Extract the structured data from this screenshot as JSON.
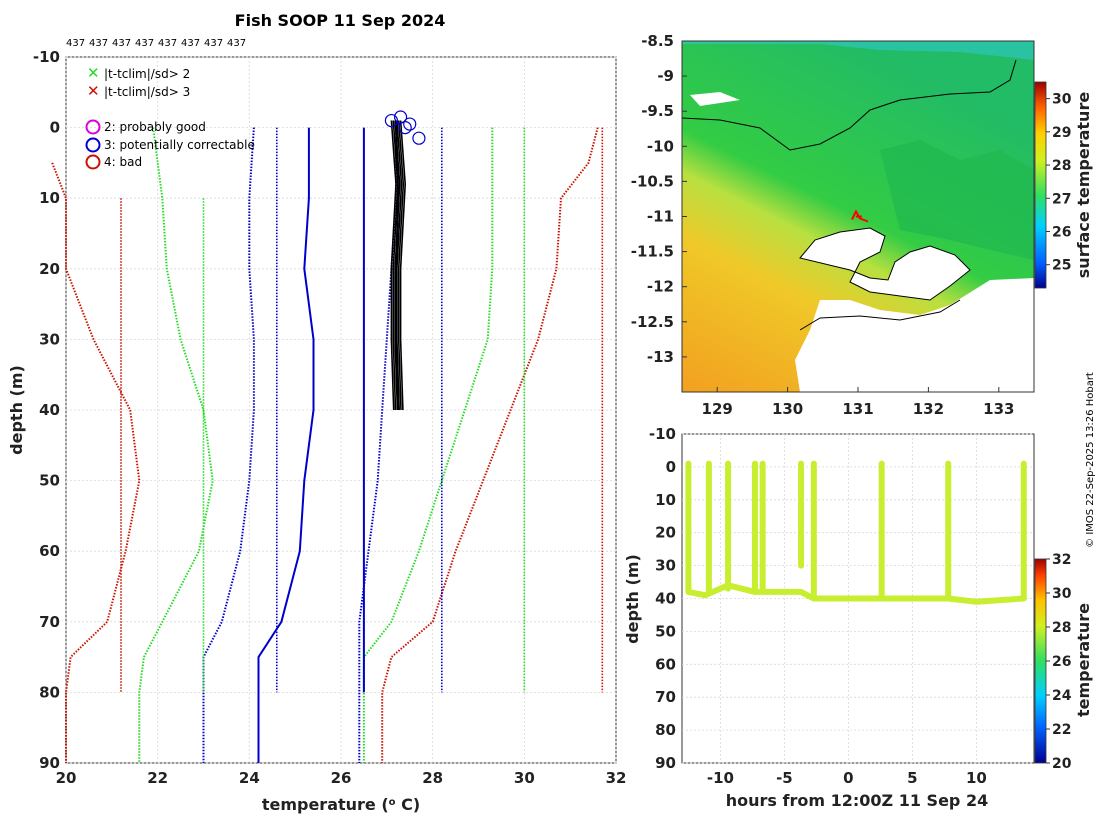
{
  "title": "Fish SOOP 11 Sep 2024",
  "count_labels": [
    "437",
    "437",
    "437",
    "437",
    "437",
    "437",
    "437",
    "437"
  ],
  "copyright": "© IMOS 22-Sep-2025 13:26 Hobart",
  "legend": {
    "flag_sd2": "|t-tclim|/sd> 2",
    "flag_sd3": "|t-tclim|/sd> 3",
    "qc2": "2: probably good",
    "qc3": "3: potentially correctable",
    "qc4": "4: bad"
  },
  "colors": {
    "green": "#22dd22",
    "red": "#cc1100",
    "blue": "#0000cc",
    "magenta": "#dd00dd",
    "black": "#000000"
  },
  "chart_data": [
    {
      "type": "line",
      "title": "Fish SOOP 11 Sep 2024",
      "xlabel": "temperature (o C)",
      "ylabel": "depth (m)",
      "xlim": [
        20,
        32
      ],
      "ylim": [
        -10,
        90
      ],
      "y_reversed": true,
      "xticks": [
        "20",
        "22",
        "24",
        "26",
        "28",
        "30",
        "32"
      ],
      "yticks": [
        "-10",
        "0",
        "10",
        "20",
        "30",
        "40",
        "50",
        "60",
        "70",
        "80",
        "90"
      ],
      "grid": true,
      "legend_position": "top-left",
      "series": [
        {
          "name": "clim mean",
          "color": "blue",
          "style": "solid",
          "width": 2,
          "points": [
            [
              25.3,
              0
            ],
            [
              25.3,
              10
            ],
            [
              25.2,
              20
            ],
            [
              25.4,
              30
            ],
            [
              25.4,
              40
            ],
            [
              25.2,
              50
            ],
            [
              25.1,
              60
            ],
            [
              24.7,
              70
            ],
            [
              24.2,
              75
            ],
            [
              24.2,
              80
            ],
            [
              24.2,
              90
            ]
          ]
        },
        {
          "name": "clim sd1 upper",
          "color": "blue",
          "style": "dotted",
          "width": 2,
          "points": [
            [
              27.2,
              0
            ],
            [
              27.2,
              10
            ],
            [
              27.1,
              20
            ],
            [
              27.0,
              30
            ],
            [
              26.9,
              40
            ],
            [
              26.8,
              50
            ],
            [
              26.6,
              60
            ],
            [
              26.4,
              70
            ],
            [
              26.4,
              80
            ],
            [
              26.4,
              90
            ]
          ]
        },
        {
          "name": "clim sd1 lower",
          "color": "blue",
          "style": "dotted",
          "width": 2,
          "points": [
            [
              24.1,
              0
            ],
            [
              24.0,
              10
            ],
            [
              24.0,
              20
            ],
            [
              24.1,
              30
            ],
            [
              24.1,
              40
            ],
            [
              24.0,
              50
            ],
            [
              23.8,
              60
            ],
            [
              23.4,
              70
            ],
            [
              23.0,
              75
            ],
            [
              23.0,
              80
            ],
            [
              23.0,
              90
            ]
          ]
        },
        {
          "name": "clim sd2 upper",
          "color": "green",
          "style": "dotted",
          "width": 2,
          "points": [
            [
              29.3,
              0
            ],
            [
              29.3,
              10
            ],
            [
              29.3,
              20
            ],
            [
              29.2,
              30
            ],
            [
              28.7,
              40
            ],
            [
              28.2,
              50
            ],
            [
              27.7,
              60
            ],
            [
              27.1,
              70
            ],
            [
              26.5,
              75
            ],
            [
              26.5,
              80
            ],
            [
              26.5,
              90
            ]
          ]
        },
        {
          "name": "clim sd2 lower",
          "color": "green",
          "style": "dotted",
          "width": 2,
          "points": [
            [
              21.9,
              0
            ],
            [
              22.1,
              10
            ],
            [
              22.2,
              20
            ],
            [
              22.5,
              30
            ],
            [
              23.0,
              40
            ],
            [
              23.2,
              50
            ],
            [
              22.9,
              60
            ],
            [
              22.1,
              70
            ],
            [
              21.7,
              75
            ],
            [
              21.6,
              80
            ],
            [
              21.6,
              90
            ]
          ]
        },
        {
          "name": "clim sd3 upper",
          "color": "red",
          "style": "dotted",
          "width": 2,
          "points": [
            [
              31.6,
              0
            ],
            [
              31.4,
              5
            ],
            [
              30.8,
              10
            ],
            [
              30.7,
              20
            ],
            [
              30.3,
              30
            ],
            [
              29.7,
              40
            ],
            [
              29.1,
              50
            ],
            [
              28.5,
              60
            ],
            [
              28.0,
              70
            ],
            [
              27.1,
              75
            ],
            [
              26.9,
              80
            ],
            [
              26.9,
              90
            ]
          ]
        },
        {
          "name": "clim sd3 lower",
          "color": "red",
          "style": "dotted",
          "width": 2,
          "points": [
            [
              19.7,
              5
            ],
            [
              20.0,
              10
            ],
            [
              20.0,
              20
            ],
            [
              20.6,
              30
            ],
            [
              21.4,
              40
            ],
            [
              21.6,
              50
            ],
            [
              21.3,
              60
            ],
            [
              20.9,
              70
            ],
            [
              20.1,
              75
            ],
            [
              20.0,
              80
            ],
            [
              20.0,
              90
            ]
          ]
        },
        {
          "name": "clim min",
          "color": "blue",
          "style": "dotted",
          "width": 1.6,
          "points": [
            [
              24.6,
              0
            ],
            [
              24.6,
              80
            ]
          ]
        },
        {
          "name": "clim max",
          "color": "blue",
          "style": "dotted",
          "width": 1.6,
          "points": [
            [
              28.2,
              0
            ],
            [
              28.2,
              80
            ]
          ]
        },
        {
          "name": "green min",
          "color": "green",
          "style": "dotted",
          "width": 1.6,
          "points": [
            [
              23.0,
              10
            ],
            [
              23.0,
              80
            ]
          ]
        },
        {
          "name": "green max",
          "color": "green",
          "style": "dotted",
          "width": 1.6,
          "points": [
            [
              30.0,
              0
            ],
            [
              30.0,
              80
            ]
          ]
        },
        {
          "name": "red min",
          "color": "red",
          "style": "dotted",
          "width": 1.6,
          "points": [
            [
              21.2,
              10
            ],
            [
              21.2,
              80
            ]
          ]
        },
        {
          "name": "red max",
          "color": "red",
          "style": "dotted",
          "width": 1.6,
          "points": [
            [
              31.7,
              0
            ],
            [
              31.7,
              80
            ]
          ]
        },
        {
          "name": "solid sd line",
          "color": "blue",
          "style": "solid",
          "width": 2,
          "points": [
            [
              26.5,
              0
            ],
            [
              26.5,
              80
            ]
          ]
        },
        {
          "name": "observed profiles",
          "color": "black",
          "style": "solid",
          "width": 2,
          "points": [
            [
              27.2,
              -1
            ],
            [
              27.25,
              10
            ],
            [
              27.2,
              20
            ],
            [
              27.2,
              30
            ],
            [
              27.25,
              40
            ]
          ]
        }
      ]
    },
    {
      "type": "heatmap",
      "title": "surface temperature",
      "xlim": [
        128.5,
        133.5
      ],
      "ylim": [
        -13.5,
        -8.5
      ],
      "xticks": [
        "129",
        "130",
        "131",
        "132",
        "133"
      ],
      "yticks": [
        "-8.5",
        "-9",
        "-9.5",
        "-10",
        "-10.5",
        "-11",
        "-11.5",
        "-12",
        "-12.5",
        "-13"
      ],
      "colorbar_label": "surface temperature",
      "colorbar_range": [
        24.3,
        30.5
      ],
      "colorbar_ticks": [
        "25",
        "26",
        "27",
        "28",
        "29",
        "30"
      ],
      "track_position": [
        131.0,
        -11.0
      ]
    },
    {
      "type": "scatter",
      "xlabel": "hours from 12:00Z 11 Sep 24",
      "ylabel": "depth (m)",
      "xlim": [
        -13,
        14.5
      ],
      "ylim": [
        -10,
        90
      ],
      "y_reversed": true,
      "xticks": [
        "-10",
        "-5",
        "0",
        "5",
        "10"
      ],
      "yticks": [
        "-10",
        "0",
        "10",
        "20",
        "30",
        "40",
        "50",
        "60",
        "70",
        "80",
        "90"
      ],
      "colorbar_label": "temperature",
      "colorbar_range": [
        20,
        32
      ],
      "colorbar_ticks": [
        "20",
        "22",
        "24",
        "26",
        "28",
        "30",
        "32"
      ],
      "profiles": [
        {
          "time": -12.5,
          "max_depth": 38
        },
        {
          "time": -10.9,
          "max_depth": 38
        },
        {
          "time": -9.4,
          "max_depth": 37
        },
        {
          "time": -7.3,
          "max_depth": 38
        },
        {
          "time": -6.7,
          "max_depth": 38
        },
        {
          "time": -3.7,
          "max_depth": 30
        },
        {
          "time": -2.7,
          "max_depth": 40
        },
        {
          "time": 2.6,
          "max_depth": 40
        },
        {
          "time": 7.8,
          "max_depth": 40
        },
        {
          "time": 13.7,
          "max_depth": 40
        }
      ],
      "bottom_track": [
        [
          -12.5,
          38
        ],
        [
          -11.2,
          39
        ],
        [
          -9.4,
          36
        ],
        [
          -7.3,
          38
        ],
        [
          -6.0,
          38
        ],
        [
          -3.7,
          38
        ],
        [
          -2.7,
          40
        ],
        [
          0,
          40
        ],
        [
          2.6,
          40
        ],
        [
          5,
          40
        ],
        [
          7.8,
          40
        ],
        [
          10,
          41
        ],
        [
          13.7,
          40
        ]
      ]
    }
  ]
}
